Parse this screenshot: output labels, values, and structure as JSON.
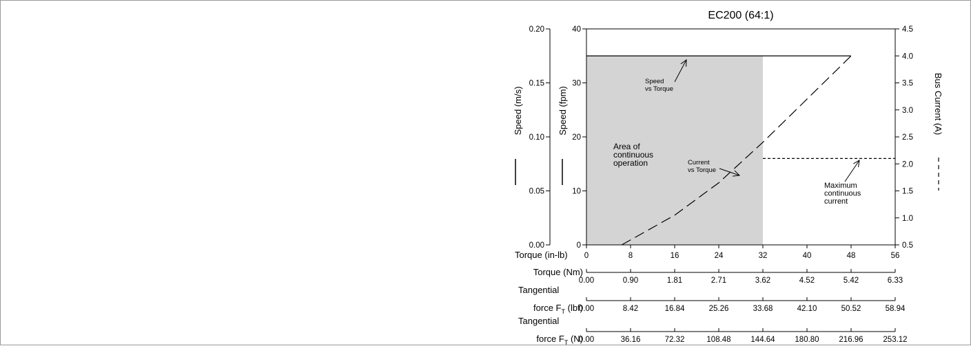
{
  "chart_data": {
    "type": "line",
    "title": "EC200 (64:1)",
    "axes": {
      "x_primary": {
        "label": "Torque (in-lb)",
        "ticks": [
          "0",
          "8",
          "16",
          "24",
          "32",
          "40",
          "48",
          "56"
        ],
        "range": [
          0,
          56
        ]
      },
      "x_extra": [
        {
          "label_lines": [
            "Torque (Nm)"
          ],
          "ticks": [
            "0.00",
            "0.90",
            "1.81",
            "2.71",
            "3.62",
            "4.52",
            "5.42",
            "6.33"
          ]
        },
        {
          "label_lines": [
            "Tangential",
            "force F",
            "T",
            " (lbf)"
          ],
          "ticks": [
            "0.00",
            "8.42",
            "16.84",
            "25.26",
            "33.68",
            "42.10",
            "50.52",
            "58.94"
          ]
        },
        {
          "label_lines": [
            "Tangential",
            "force F",
            "T",
            " (N)"
          ],
          "ticks": [
            "0.00",
            "36.16",
            "72.32",
            "108.48",
            "144.64",
            "180.80",
            "216.96",
            "253.12"
          ]
        }
      ],
      "y_fpm": {
        "label": "Speed (fpm)",
        "ticks": [
          "0",
          "10",
          "20",
          "30",
          "40"
        ],
        "range": [
          0,
          40
        ]
      },
      "y_ms": {
        "label": "Speed (m/s)",
        "ticks": [
          "0.00",
          "0.05",
          "0.10",
          "0.15",
          "0.20"
        ],
        "range": [
          0,
          0.2
        ]
      },
      "y_current": {
        "label": "Bus Current (A)",
        "ticks": [
          "0.5",
          "1.0",
          "1.5",
          "2.0",
          "2.5",
          "3.0",
          "3.5",
          "4.0",
          "4.5"
        ],
        "range": [
          0.5,
          4.5
        ]
      }
    },
    "continuous_region": {
      "x": [
        0,
        32
      ],
      "y_fpm": [
        0,
        35
      ]
    },
    "series": [
      {
        "style": "solid",
        "axis": "y_fpm",
        "x": [
          0,
          48
        ],
        "y": [
          35,
          35
        ]
      },
      {
        "style": "dashed",
        "axis": "y_current",
        "x": [
          6.4,
          16,
          24,
          32,
          40,
          48
        ],
        "y": [
          0.5,
          1.05,
          1.65,
          2.4,
          3.2,
          4.0
        ]
      },
      {
        "style": "dotted",
        "axis": "y_current",
        "x": [
          32,
          56
        ],
        "y": [
          2.1,
          2.1
        ]
      }
    ],
    "annotations": {
      "area": [
        "Area of",
        "continuous",
        "operation"
      ],
      "speed": [
        "Speed",
        "vs Torque"
      ],
      "current": [
        "Current",
        "vs Torque"
      ],
      "max_current": [
        "Maximum",
        "continuous",
        "current"
      ]
    }
  }
}
